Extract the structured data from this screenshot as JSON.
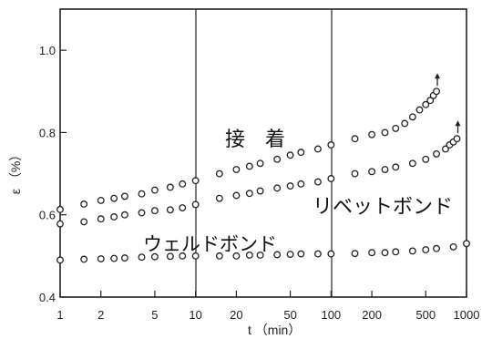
{
  "chart_data": {
    "type": "scatter",
    "x_scale": "log",
    "xlim": [
      1,
      1000
    ],
    "ylim": [
      0.4,
      1.1
    ],
    "xlabel": "t （min）",
    "ylabel": "ε （%）",
    "x_ticks": [
      1,
      2,
      5,
      10,
      20,
      50,
      100,
      200,
      500,
      1000
    ],
    "x_tick_labels": [
      "1",
      "2",
      "5",
      "10",
      "20",
      "50",
      "100",
      "200",
      "500",
      "1000"
    ],
    "y_ticks": [
      0.4,
      0.6,
      0.8,
      1.0
    ],
    "y_tick_labels": [
      "0.4",
      "0.6",
      "0.8",
      "1.0"
    ],
    "grid": "vertical lines at 10 and 100",
    "series": [
      {
        "name": "接　着",
        "arrow_at_end": true,
        "points": [
          [
            1,
            0.613
          ],
          [
            1.5,
            0.626
          ],
          [
            2,
            0.635
          ],
          [
            2.5,
            0.64
          ],
          [
            3,
            0.645
          ],
          [
            4,
            0.651
          ],
          [
            5,
            0.66
          ],
          [
            6.5,
            0.667
          ],
          [
            8,
            0.675
          ],
          [
            10,
            0.683
          ],
          [
            15,
            0.7
          ],
          [
            20,
            0.71
          ],
          [
            25,
            0.718
          ],
          [
            30,
            0.725
          ],
          [
            40,
            0.735
          ],
          [
            50,
            0.745
          ],
          [
            60,
            0.752
          ],
          [
            80,
            0.76
          ],
          [
            100,
            0.77
          ],
          [
            150,
            0.785
          ],
          [
            200,
            0.795
          ],
          [
            250,
            0.8
          ],
          [
            300,
            0.81
          ],
          [
            350,
            0.822
          ],
          [
            400,
            0.838
          ],
          [
            450,
            0.855
          ],
          [
            500,
            0.868
          ],
          [
            540,
            0.878
          ],
          [
            570,
            0.89
          ],
          [
            600,
            0.9
          ]
        ]
      },
      {
        "name": "リベットボンド",
        "arrow_at_end": true,
        "points": [
          [
            1,
            0.578
          ],
          [
            1.5,
            0.583
          ],
          [
            2,
            0.59
          ],
          [
            2.5,
            0.595
          ],
          [
            3,
            0.6
          ],
          [
            4,
            0.605
          ],
          [
            5,
            0.61
          ],
          [
            6.5,
            0.612
          ],
          [
            8,
            0.617
          ],
          [
            10,
            0.625
          ],
          [
            15,
            0.64
          ],
          [
            20,
            0.647
          ],
          [
            25,
            0.652
          ],
          [
            30,
            0.658
          ],
          [
            40,
            0.665
          ],
          [
            50,
            0.67
          ],
          [
            60,
            0.675
          ],
          [
            80,
            0.68
          ],
          [
            100,
            0.688
          ],
          [
            150,
            0.7
          ],
          [
            200,
            0.705
          ],
          [
            250,
            0.71
          ],
          [
            300,
            0.716
          ],
          [
            400,
            0.725
          ],
          [
            500,
            0.735
          ],
          [
            600,
            0.748
          ],
          [
            700,
            0.76
          ],
          [
            750,
            0.77
          ],
          [
            800,
            0.777
          ],
          [
            850,
            0.785
          ]
        ]
      },
      {
        "name": "ウェルドボンド",
        "arrow_at_end": false,
        "points": [
          [
            1,
            0.49
          ],
          [
            1.5,
            0.492
          ],
          [
            2,
            0.493
          ],
          [
            2.5,
            0.494
          ],
          [
            3,
            0.495
          ],
          [
            4,
            0.497
          ],
          [
            5,
            0.498
          ],
          [
            6.5,
            0.499
          ],
          [
            8,
            0.5
          ],
          [
            10,
            0.5
          ],
          [
            15,
            0.5
          ],
          [
            20,
            0.5
          ],
          [
            25,
            0.502
          ],
          [
            30,
            0.502
          ],
          [
            40,
            0.503
          ],
          [
            50,
            0.504
          ],
          [
            60,
            0.505
          ],
          [
            80,
            0.505
          ],
          [
            100,
            0.505
          ],
          [
            150,
            0.506
          ],
          [
            200,
            0.508
          ],
          [
            250,
            0.508
          ],
          [
            300,
            0.51
          ],
          [
            400,
            0.512
          ],
          [
            500,
            0.515
          ],
          [
            600,
            0.518
          ],
          [
            800,
            0.522
          ],
          [
            1000,
            0.53
          ]
        ]
      }
    ]
  }
}
